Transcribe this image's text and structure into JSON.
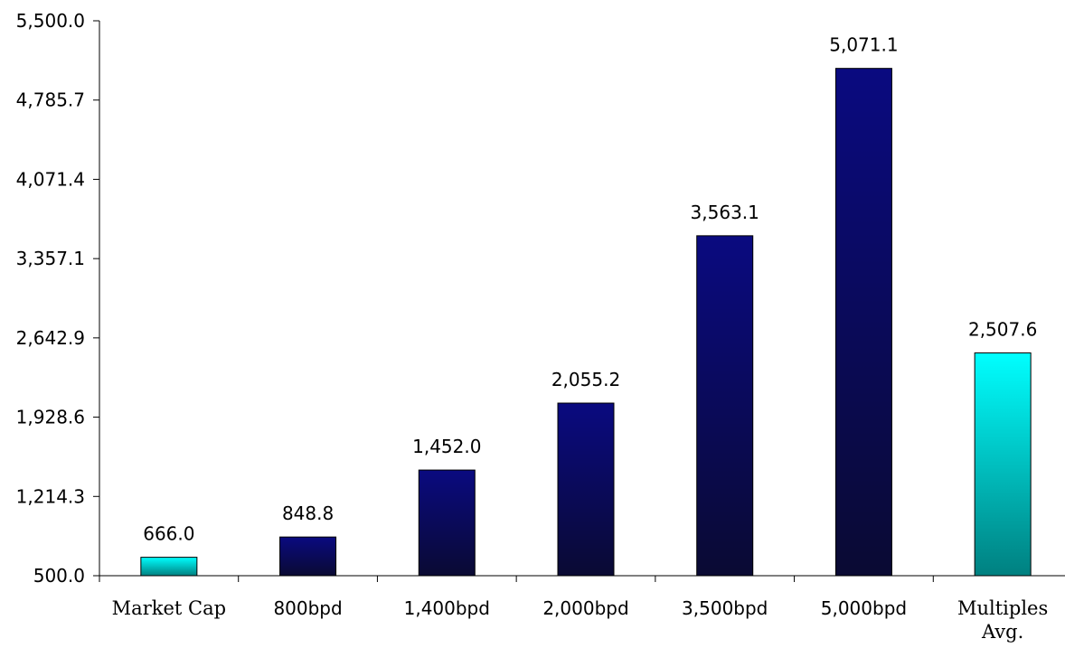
{
  "chart_data": {
    "type": "bar",
    "title": "",
    "xlabel": "",
    "ylabel": "",
    "ylim": [
      500.0,
      5500.0
    ],
    "yticks": [
      "500.0",
      "1,214.3",
      "1,928.6",
      "2,642.9",
      "3,357.1",
      "4,071.4",
      "4,785.7",
      "5,500.0"
    ],
    "categories": [
      {
        "label": "Market Cap",
        "lines": [
          "Market Cap"
        ],
        "serif": true
      },
      {
        "label": "800bpd",
        "lines": [
          "800bpd"
        ],
        "serif": false
      },
      {
        "label": "1,400bpd",
        "lines": [
          "1,400bpd"
        ],
        "serif": false
      },
      {
        "label": "2,000bpd",
        "lines": [
          "2,000bpd"
        ],
        "serif": false
      },
      {
        "label": "3,500bpd",
        "lines": [
          "3,500bpd"
        ],
        "serif": false
      },
      {
        "label": "5,000bpd",
        "lines": [
          "5,000bpd"
        ],
        "serif": false
      },
      {
        "label": "Multiples Avg.",
        "lines": [
          "Multiples",
          "Avg."
        ],
        "serif": true
      }
    ],
    "values": [
      666.0,
      848.8,
      1452.0,
      2055.2,
      3563.1,
      5071.1,
      2507.6
    ],
    "value_labels": [
      "666.0",
      "848.8",
      "1,452.0",
      "2,055.2",
      "3,563.1",
      "5,071.1",
      "2,507.6"
    ],
    "bar_styles": [
      "cyan",
      "navy",
      "navy",
      "navy",
      "navy",
      "navy",
      "cyan"
    ],
    "grid": false,
    "legend": "none"
  },
  "colors": {
    "navy_top": "#0a0a80",
    "navy_bottom": "#0a0a33",
    "cyan_top": "#00ffff",
    "cyan_bottom": "#008080",
    "axis": "#000000",
    "bar_outline": "#000000"
  }
}
